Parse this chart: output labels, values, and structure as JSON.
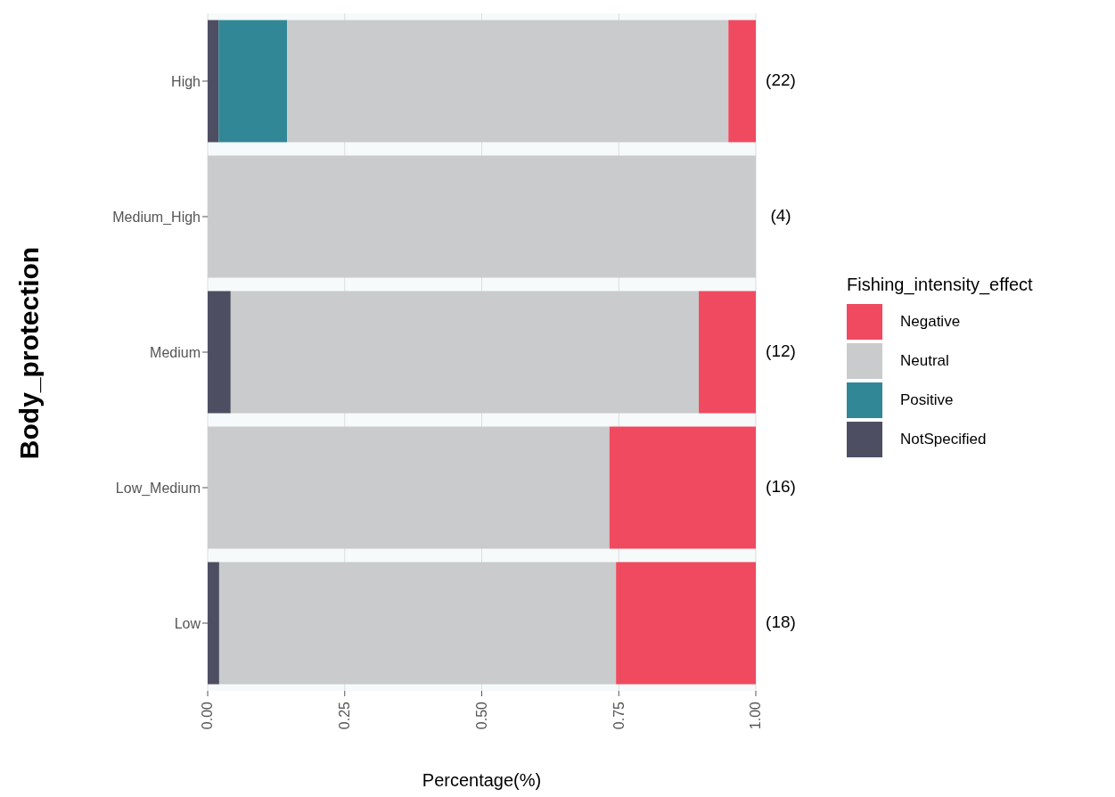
{
  "chart_data": {
    "type": "bar",
    "orientation": "horizontal",
    "stacked": true,
    "xlabel": "Percentage(%)",
    "ylabel": "Body_protection",
    "legend_title": "Fishing_intensity_effect",
    "legend": "right",
    "grid": "x",
    "categories": [
      "High",
      "Medium_High",
      "Medium",
      "Low_Medium",
      "Low"
    ],
    "series": [
      {
        "name": "NotSpecified",
        "color": "#4e4e63",
        "values": [
          0.02,
          0,
          0.042,
          0,
          0.021
        ]
      },
      {
        "name": "Positive",
        "color": "#318796",
        "values": [
          0.125,
          0,
          0,
          0,
          0
        ]
      },
      {
        "name": "Neutral",
        "color": "#c9cbcc",
        "values": [
          0.805,
          1,
          0.854,
          0.733,
          0.724
        ]
      },
      {
        "name": "Negative",
        "color": "#ef4a60",
        "values": [
          0.05,
          0,
          0.104,
          0.267,
          0.255
        ]
      }
    ],
    "annotations": [
      "(22)",
      "(4)",
      "(12)",
      "(16)",
      "(18)"
    ],
    "xlim": [
      0,
      1
    ],
    "xticks": [
      {
        "value": 0,
        "label": "0.00"
      },
      {
        "value": 0.25,
        "label": "0.25"
      },
      {
        "value": 0.5,
        "label": "0.50"
      },
      {
        "value": 0.75,
        "label": "0.75"
      },
      {
        "value": 1,
        "label": "1.00"
      }
    ]
  }
}
